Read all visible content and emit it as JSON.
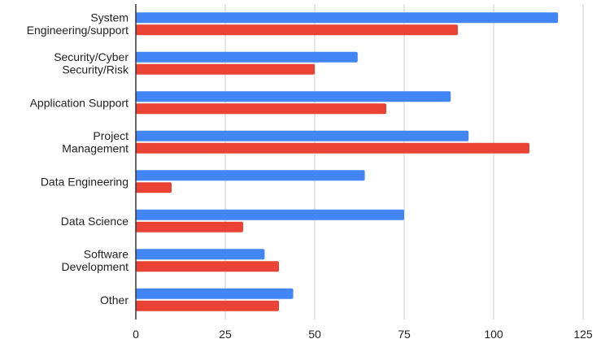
{
  "chart_data": {
    "type": "bar",
    "orientation": "horizontal",
    "title": "",
    "xlabel": "",
    "ylabel": "",
    "categories": [
      [
        "System",
        "Engineering/support"
      ],
      [
        "Security/Cyber",
        "Security/Risk"
      ],
      [
        "Application Support"
      ],
      [
        "Project",
        "Management"
      ],
      [
        "Data Engineering"
      ],
      [
        "Data Science"
      ],
      [
        "Software",
        "Development"
      ],
      [
        "Other"
      ]
    ],
    "series": [
      {
        "color": "#4285f4",
        "values": [
          118,
          62,
          88,
          93,
          64,
          75,
          36,
          44
        ]
      },
      {
        "color": "#ea4335",
        "values": [
          90,
          50,
          70,
          110,
          10,
          30,
          40,
          40
        ]
      }
    ],
    "xlim": [
      0,
      125
    ],
    "xticks": [
      0,
      25,
      50,
      75,
      100,
      125
    ],
    "grid": true,
    "legend": "none"
  }
}
